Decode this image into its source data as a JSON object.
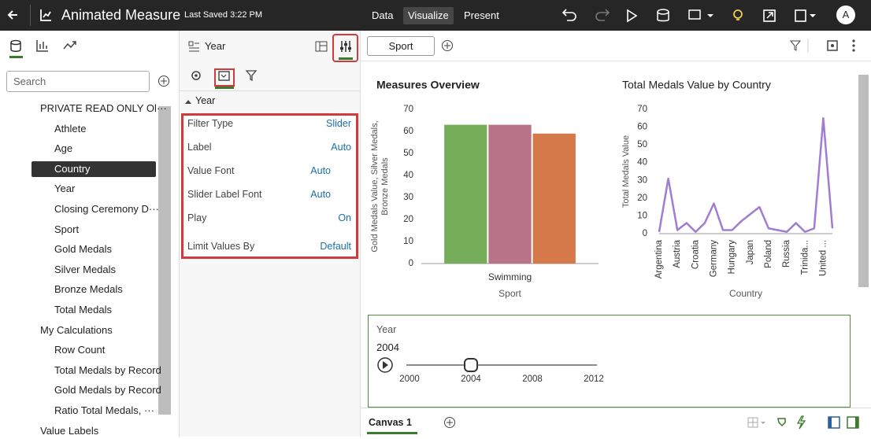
{
  "header": {
    "title": "Animated Measure",
    "saved": "Last Saved 3:22 PM",
    "tabs": [
      "Data",
      "Visualize",
      "Present"
    ],
    "active_tab": 1,
    "avatar": "A"
  },
  "data_panel": {
    "search_placeholder": "Search",
    "items": [
      {
        "label": "PRIVATE READ ONLY Ol···",
        "kind": "dataset",
        "level": 0,
        "expanded": true
      },
      {
        "label": "Athlete",
        "kind": "attribute",
        "level": 1
      },
      {
        "label": "Age",
        "kind": "measure",
        "level": 1
      },
      {
        "label": "Country",
        "kind": "attribute",
        "level": 1,
        "selected": true
      },
      {
        "label": "Year",
        "kind": "attribute",
        "level": 1
      },
      {
        "label": "Closing Ceremony D···",
        "kind": "date",
        "level": 1,
        "expanded": false
      },
      {
        "label": "Sport",
        "kind": "attribute",
        "level": 1
      },
      {
        "label": "Gold Medals",
        "kind": "measure",
        "level": 1
      },
      {
        "label": "Silver Medals",
        "kind": "measure",
        "level": 1
      },
      {
        "label": "Bronze Medals",
        "kind": "measure",
        "level": 1
      },
      {
        "label": "Total Medals",
        "kind": "measure",
        "level": 1
      },
      {
        "label": "My Calculations",
        "kind": "folder",
        "level": 0,
        "expanded": true
      },
      {
        "label": "Row Count",
        "kind": "measure",
        "level": 1
      },
      {
        "label": "Total Medals by Record",
        "kind": "measure",
        "level": 1
      },
      {
        "label": "Gold Medals by Record",
        "kind": "measure",
        "level": 1
      },
      {
        "label": "Ratio Total Medals, ···",
        "kind": "measure",
        "level": 1
      },
      {
        "label": "Value Labels",
        "kind": "tag",
        "level": 0
      }
    ]
  },
  "properties_panel": {
    "title": "Year",
    "section": "Year",
    "rows": [
      {
        "label": "Filter Type",
        "value": "Slider"
      },
      {
        "label": "Label",
        "value": "Auto"
      },
      {
        "label": "Value Font",
        "value": "Auto",
        "reset": true
      },
      {
        "label": "Slider Label Font",
        "value": "Auto",
        "reset": true
      },
      {
        "label": "Play",
        "value": "On"
      },
      {
        "label": "Limit Values By",
        "value": "Default"
      }
    ]
  },
  "canvas": {
    "filter": "Sport",
    "slider": {
      "label": "Year",
      "value": "2004",
      "ticks": [
        "2000",
        "2004",
        "2008",
        "2012"
      ]
    },
    "tab": "Canvas 1"
  },
  "chart_data": [
    {
      "type": "bar",
      "title": "Measures Overview",
      "categories": [
        "Swimming"
      ],
      "series": [
        {
          "color": "#76ad59",
          "values": [
            63
          ]
        },
        {
          "color": "#b87486",
          "values": [
            63
          ]
        },
        {
          "color": "#d5784a",
          "values": [
            59
          ]
        }
      ],
      "ylim": [
        0,
        70
      ],
      "yticks": [
        0,
        10,
        20,
        30,
        40,
        50,
        60,
        70
      ],
      "x_label": "Sport",
      "y_label": "Gold Medals Value, Silver Medals, Bronze Medals"
    },
    {
      "type": "line",
      "title": "Total Medals Value by Country",
      "categories": [
        "Argentina",
        null,
        "Austria",
        null,
        "Croatia",
        null,
        "Germany",
        null,
        "Hungary",
        null,
        "Japan",
        null,
        "Poland",
        null,
        "Russia",
        null,
        "Trinida...",
        null,
        "United ...",
        null
      ],
      "color": "#a07dd2",
      "values": [
        1,
        31,
        2,
        6,
        1,
        6,
        17,
        2,
        2,
        7,
        11,
        15,
        3,
        2,
        1,
        6,
        1,
        3,
        65,
        3
      ],
      "ylim": [
        0,
        70
      ],
      "yticks": [
        0,
        10,
        20,
        30,
        40,
        50,
        60,
        70
      ],
      "x_label": "Country",
      "y_label": "Total Medals Value"
    }
  ]
}
